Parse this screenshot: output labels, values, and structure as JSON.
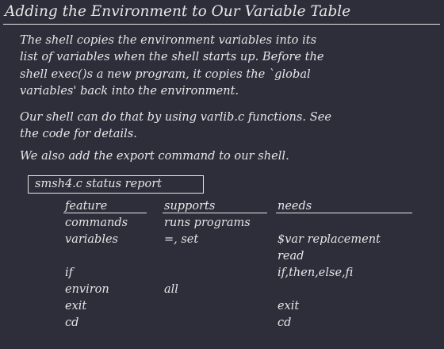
{
  "slide": {
    "title": "Adding the Environment to Our Variable Table",
    "paragraph1": [
      "The shell copies the environment variables into its",
      "list of variables when the shell starts up.  Before the",
      "shell exec()s a new program, it copies the `global",
      "variables' back into the environment."
    ],
    "paragraph2": [
      "Our shell can do that by using varlib.c functions.  See",
      "the code for details."
    ],
    "paragraph3": [
      "We also add the export command to our shell."
    ]
  },
  "status_report": {
    "title": "smsh4.c  status report",
    "headers": {
      "feature": "feature",
      "supports": "supports",
      "needs": "needs"
    },
    "rows": [
      {
        "feature": "commands",
        "supports": "runs programs",
        "needs": ""
      },
      {
        "feature": "variables",
        "supports": "=, set",
        "needs": "$var replacement"
      },
      {
        "feature": "",
        "supports": "",
        "needs": "read"
      },
      {
        "feature": "if",
        "supports": "",
        "needs": "if,then,else,fi"
      },
      {
        "feature": "environ",
        "supports": "all",
        "needs": ""
      },
      {
        "feature": "exit",
        "supports": "",
        "needs": "exit"
      },
      {
        "feature": "cd",
        "supports": "",
        "needs": "cd"
      }
    ]
  }
}
